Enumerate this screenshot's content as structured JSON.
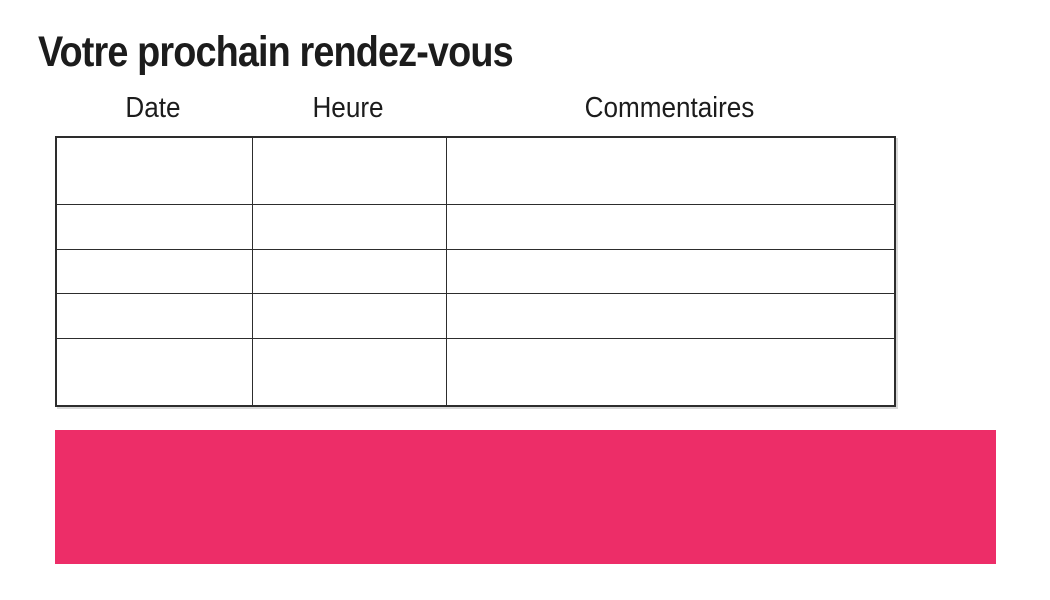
{
  "slide": {
    "title": "Votre prochain rendez-vous"
  },
  "appointments_table": {
    "headers": [
      "Date",
      "Heure",
      "Commentaires"
    ],
    "rows": [
      [
        "",
        "",
        ""
      ],
      [
        "",
        "",
        ""
      ],
      [
        "",
        "",
        ""
      ],
      [
        "",
        "",
        ""
      ],
      [
        "",
        "",
        ""
      ]
    ]
  },
  "colors": {
    "accent_pink": "#ED2D68",
    "table_border": "#2D2D2D",
    "text": "#1C1C1C"
  }
}
